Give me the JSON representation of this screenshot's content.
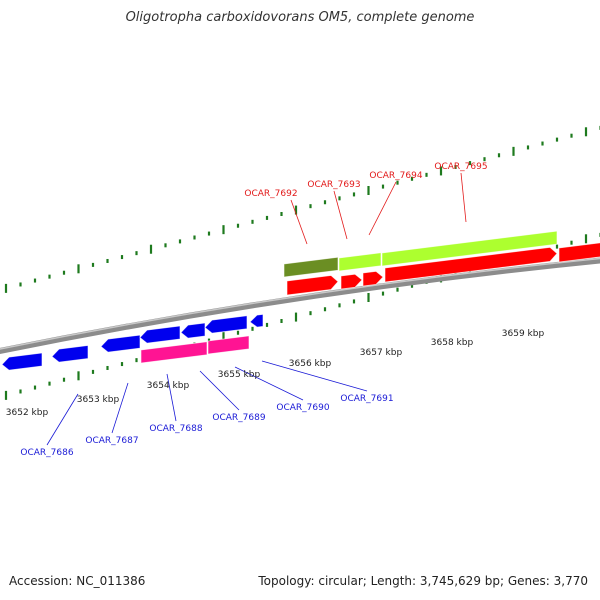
{
  "title": "Oligotropha carboxidovorans OM5, complete genome",
  "footer": {
    "accession": "Accession: NC_011386",
    "topology": "Topology: circular; Length: 3,745,629 bp; Genes: 3,770"
  },
  "colors": {
    "backbone": "#8c8c8c",
    "tick": "#1e7a1e",
    "forward_label": "#e21a1a",
    "reverse_label": "#1a1ad6",
    "cds_forward": "#ff0000",
    "cds_reverse": "#0000ee",
    "gene_olive": "#6b8e23",
    "gene_lime": "#adff2f",
    "gene_pink": "#ff1493"
  },
  "scale_labels": [
    "3652 kbp",
    "3653 kbp",
    "3654 kbp",
    "3655 kbp",
    "3656 kbp",
    "3657 kbp",
    "3658 kbp",
    "3659 kbp"
  ],
  "forward_gene_labels": [
    "OCAR_7692",
    "OCAR_7693",
    "OCAR_7694",
    "OCAR_7695"
  ],
  "reverse_gene_labels": [
    "OCAR_7686",
    "OCAR_7687",
    "OCAR_7688",
    "OCAR_7689",
    "OCAR_7690",
    "OCAR_7691"
  ]
}
